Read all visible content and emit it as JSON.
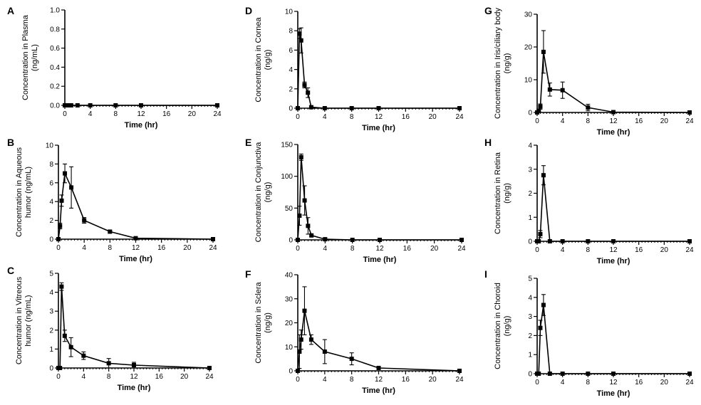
{
  "figure": {
    "xlabel": "Time (hr)",
    "x_ticks": [
      0,
      4,
      8,
      12,
      16,
      20,
      24
    ]
  },
  "chart_data": [
    {
      "panel": "A",
      "type": "line",
      "ylabel_lines": [
        "Concentration in Plasma",
        "(ng/mL)"
      ],
      "xlabel": "Time (hr)",
      "ylim": [
        0,
        1.0
      ],
      "y_ticks": [
        "0.0",
        "0.2",
        "0.4",
        "0.6",
        "0.8",
        "1.0"
      ],
      "x": [
        0,
        0.25,
        0.5,
        1,
        2,
        4,
        8,
        12,
        24
      ],
      "y": [
        0,
        0,
        0,
        0,
        0,
        0,
        0,
        0,
        0
      ],
      "err": [
        0,
        0,
        0,
        0,
        0,
        0,
        0,
        0,
        0
      ]
    },
    {
      "panel": "B",
      "type": "line",
      "ylabel_lines": [
        "Concentration in Aqueous",
        "humor (ng/mL)"
      ],
      "xlabel": "Time (hr)",
      "ylim": [
        0,
        10
      ],
      "y_ticks": [
        "0",
        "2",
        "4",
        "6",
        "8",
        "10"
      ],
      "x": [
        0,
        0.25,
        0.5,
        1,
        2,
        4,
        8,
        12,
        24
      ],
      "y": [
        0,
        1.4,
        4.1,
        7.0,
        5.5,
        2.0,
        0.8,
        0.1,
        0
      ],
      "err": [
        0,
        0.3,
        0.6,
        1.0,
        2.2,
        0.3,
        0.1,
        0.05,
        0
      ]
    },
    {
      "panel": "C",
      "type": "line",
      "ylabel_lines": [
        "Concentration in Vitreous",
        "humor (ng/mL)"
      ],
      "xlabel": "Time (hr)",
      "ylim": [
        0,
        5
      ],
      "y_ticks": [
        "0",
        "1",
        "2",
        "3",
        "4",
        "5"
      ],
      "x": [
        0,
        0.25,
        0.5,
        1,
        2,
        4,
        8,
        12,
        24
      ],
      "y": [
        0,
        0,
        4.3,
        1.7,
        1.1,
        0.65,
        0.25,
        0.15,
        0
      ],
      "err": [
        0,
        0,
        0.2,
        0.3,
        0.5,
        0.2,
        0.25,
        0.15,
        0
      ]
    },
    {
      "panel": "D",
      "type": "line",
      "ylabel_lines": [
        "Concentration in Cornea",
        "(ng/g)"
      ],
      "xlabel": "Time (hr)",
      "ylim": [
        0,
        10
      ],
      "y_ticks": [
        "0",
        "2",
        "4",
        "6",
        "8",
        "10"
      ],
      "x": [
        0,
        0.25,
        0.5,
        1,
        1.5,
        2,
        4,
        8,
        12,
        24
      ],
      "y": [
        0,
        7.7,
        7.0,
        2.4,
        1.6,
        0.1,
        0,
        0,
        0,
        0
      ],
      "err": [
        0,
        0.5,
        1.3,
        0.3,
        0.5,
        0.1,
        0,
        0,
        0,
        0
      ]
    },
    {
      "panel": "E",
      "type": "line",
      "ylabel_lines": [
        "Concentration in Conjunctiva",
        "(ng/g)"
      ],
      "xlabel": "Time (hr)",
      "ylim": [
        0,
        150
      ],
      "y_ticks": [
        "0",
        "50",
        "100",
        "150"
      ],
      "x": [
        0,
        0.25,
        0.5,
        1,
        1.5,
        2,
        4,
        8,
        12,
        24
      ],
      "y": [
        0,
        38,
        130,
        62,
        22,
        7,
        1,
        0,
        0,
        0
      ],
      "err": [
        0,
        15,
        5,
        23,
        13,
        2,
        1,
        0,
        0,
        0
      ]
    },
    {
      "panel": "F",
      "type": "line",
      "ylabel_lines": [
        "Concentration in Sclera",
        "(ng/g)"
      ],
      "xlabel": "Time (hr)",
      "ylim": [
        0,
        40
      ],
      "y_ticks": [
        "0",
        "10",
        "20",
        "30",
        "40"
      ],
      "x": [
        0,
        0.25,
        0.5,
        1,
        2,
        4,
        8,
        12,
        24
      ],
      "y": [
        0,
        8,
        13,
        25,
        13,
        8,
        5,
        1.2,
        0
      ],
      "err": [
        0,
        7,
        4,
        10,
        2,
        5,
        2.5,
        0.3,
        0
      ]
    },
    {
      "panel": "G",
      "type": "line",
      "ylabel_lines": [
        "Concentration in Iris/ciliary body",
        "(ng/g)"
      ],
      "xlabel": "Time (hr)",
      "ylim": [
        0,
        30
      ],
      "y_ticks": [
        "0",
        "10",
        "20",
        "30"
      ],
      "x": [
        0,
        0.25,
        0.5,
        1,
        2,
        4,
        8,
        12,
        24
      ],
      "y": [
        0,
        0.5,
        1.8,
        18.5,
        7,
        6.8,
        1.5,
        0.1,
        0
      ],
      "err": [
        0,
        0.2,
        0.8,
        6.5,
        2,
        2.5,
        1,
        0.1,
        0
      ]
    },
    {
      "panel": "H",
      "type": "line",
      "ylabel_lines": [
        "Concentration in Retina",
        "(ng/g)"
      ],
      "xlabel": "Time (hr)",
      "ylim": [
        0,
        4
      ],
      "y_ticks": [
        "0",
        "1",
        "2",
        "3",
        "4"
      ],
      "x": [
        0,
        0.25,
        0.5,
        1,
        2,
        4,
        8,
        12,
        24
      ],
      "y": [
        0,
        0,
        0.3,
        2.75,
        0,
        0,
        0,
        0,
        0
      ],
      "err": [
        0,
        0,
        0.15,
        0.4,
        0,
        0,
        0,
        0,
        0
      ]
    },
    {
      "panel": "I",
      "type": "line",
      "ylabel_lines": [
        "Concentration in Choroid",
        "(ng/g)"
      ],
      "xlabel": "Time (hr)",
      "ylim": [
        0,
        5
      ],
      "y_ticks": [
        "0",
        "1",
        "2",
        "3",
        "4",
        "5"
      ],
      "x": [
        0,
        0.25,
        0.5,
        1,
        2,
        4,
        8,
        12,
        24
      ],
      "y": [
        0,
        0,
        2.4,
        3.6,
        0,
        0,
        0,
        0,
        0
      ],
      "err": [
        0,
        0,
        0.4,
        0.55,
        0,
        0,
        0,
        0,
        0
      ]
    }
  ]
}
